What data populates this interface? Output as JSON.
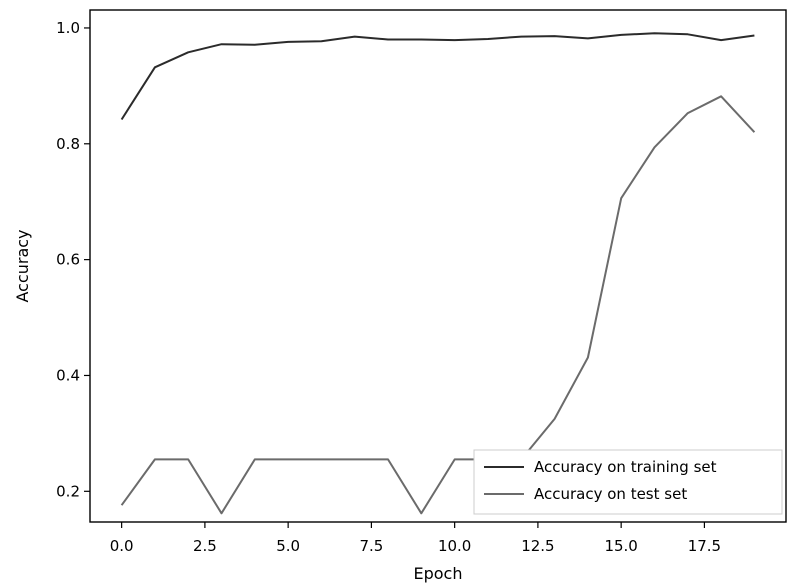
{
  "chart_data": {
    "type": "line",
    "xlabel": "Epoch",
    "ylabel": "Accuracy",
    "xlim": [
      -0.95,
      19.95
    ],
    "ylim": [
      0.147,
      1.031
    ],
    "xticks": [
      "0.0",
      "2.5",
      "5.0",
      "7.5",
      "10.0",
      "12.5",
      "15.0",
      "17.5"
    ],
    "yticks": [
      "0.2",
      "0.4",
      "0.6",
      "0.8",
      "1.0"
    ],
    "legend_position": "lower-right",
    "grid": false,
    "x": [
      0,
      1,
      2,
      3,
      4,
      5,
      6,
      7,
      8,
      9,
      10,
      11,
      12,
      13,
      14,
      15,
      16,
      17,
      18,
      19
    ],
    "series": [
      {
        "name": "Accuracy on training set",
        "color": "#2b2b2b",
        "values": [
          0.842,
          0.932,
          0.958,
          0.972,
          0.971,
          0.976,
          0.977,
          0.985,
          0.98,
          0.98,
          0.979,
          0.981,
          0.985,
          0.986,
          0.982,
          0.988,
          0.991,
          0.989,
          0.979,
          0.987
        ]
      },
      {
        "name": "Accuracy on test set",
        "color": "#6b6b6b",
        "values": [
          0.176,
          0.255,
          0.255,
          0.162,
          0.255,
          0.255,
          0.255,
          0.255,
          0.255,
          0.162,
          0.255,
          0.255,
          0.255,
          0.325,
          0.431,
          0.706,
          0.794,
          0.853,
          0.882,
          0.82
        ]
      }
    ]
  }
}
